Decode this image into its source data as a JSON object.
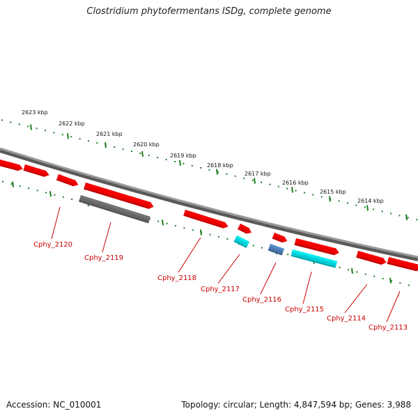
{
  "title": "Clostridium phytofermentans ISDg, complete genome",
  "footer": {
    "accession": "Accession: NC_010001",
    "summary": "Topology: circular; Length: 4,847,594 bp; Genes: 3,988"
  },
  "colors": {
    "backbone": "#8c8c8c",
    "ruler": "#1e7d1e",
    "forward_gene": "#ee0000",
    "reverse_gene": "#ee0000",
    "pseudo_gene": "#666666",
    "highlight_cyan": "#00d0d8",
    "highlight_blue": "#4a7ab0",
    "label": "#cc0000"
  },
  "outer_ruler": {
    "labels": [
      "2623 kbp",
      "2622 kbp",
      "2621 kbp",
      "2620 kbp",
      "2619 kbp",
      "2618 kbp",
      "2617 kbp",
      "2616 kbp",
      "2615 kbp",
      "2614 kbp"
    ]
  },
  "genes": [
    {
      "id": "g0",
      "strand": "forward",
      "color": "forward_gene",
      "label": ""
    },
    {
      "id": "g1",
      "strand": "forward",
      "color": "forward_gene",
      "label": ""
    },
    {
      "id": "g2",
      "strand": "forward",
      "color": "forward_gene",
      "label": ""
    },
    {
      "id": "g3",
      "strand": "forward",
      "color": "forward_gene",
      "label": ""
    },
    {
      "id": "g4",
      "strand": "reverse",
      "color": "pseudo_gene",
      "label": ""
    },
    {
      "id": "g5",
      "strand": "forward",
      "color": "forward_gene",
      "label": ""
    },
    {
      "id": "g6",
      "strand": "forward",
      "color": "forward_gene",
      "label": ""
    },
    {
      "id": "g7",
      "strand": "reverse",
      "color": "highlight_cyan",
      "label": ""
    },
    {
      "id": "g8",
      "strand": "forward",
      "color": "forward_gene",
      "label": ""
    },
    {
      "id": "g9",
      "strand": "reverse",
      "color": "highlight_blue",
      "label": ""
    },
    {
      "id": "g10",
      "strand": "forward",
      "color": "forward_gene",
      "label": ""
    },
    {
      "id": "g11",
      "strand": "reverse",
      "color": "highlight_cyan",
      "label": ""
    },
    {
      "id": "g12",
      "strand": "forward",
      "color": "forward_gene",
      "label": ""
    },
    {
      "id": "g13",
      "strand": "forward",
      "color": "forward_gene",
      "label": ""
    }
  ],
  "gene_labels": [
    "Cphy_2120",
    "Cphy_2119",
    "Cphy_2118",
    "Cphy_2117",
    "Cphy_2116",
    "Cphy_2115",
    "Cphy_2114",
    "Cphy_2113"
  ]
}
